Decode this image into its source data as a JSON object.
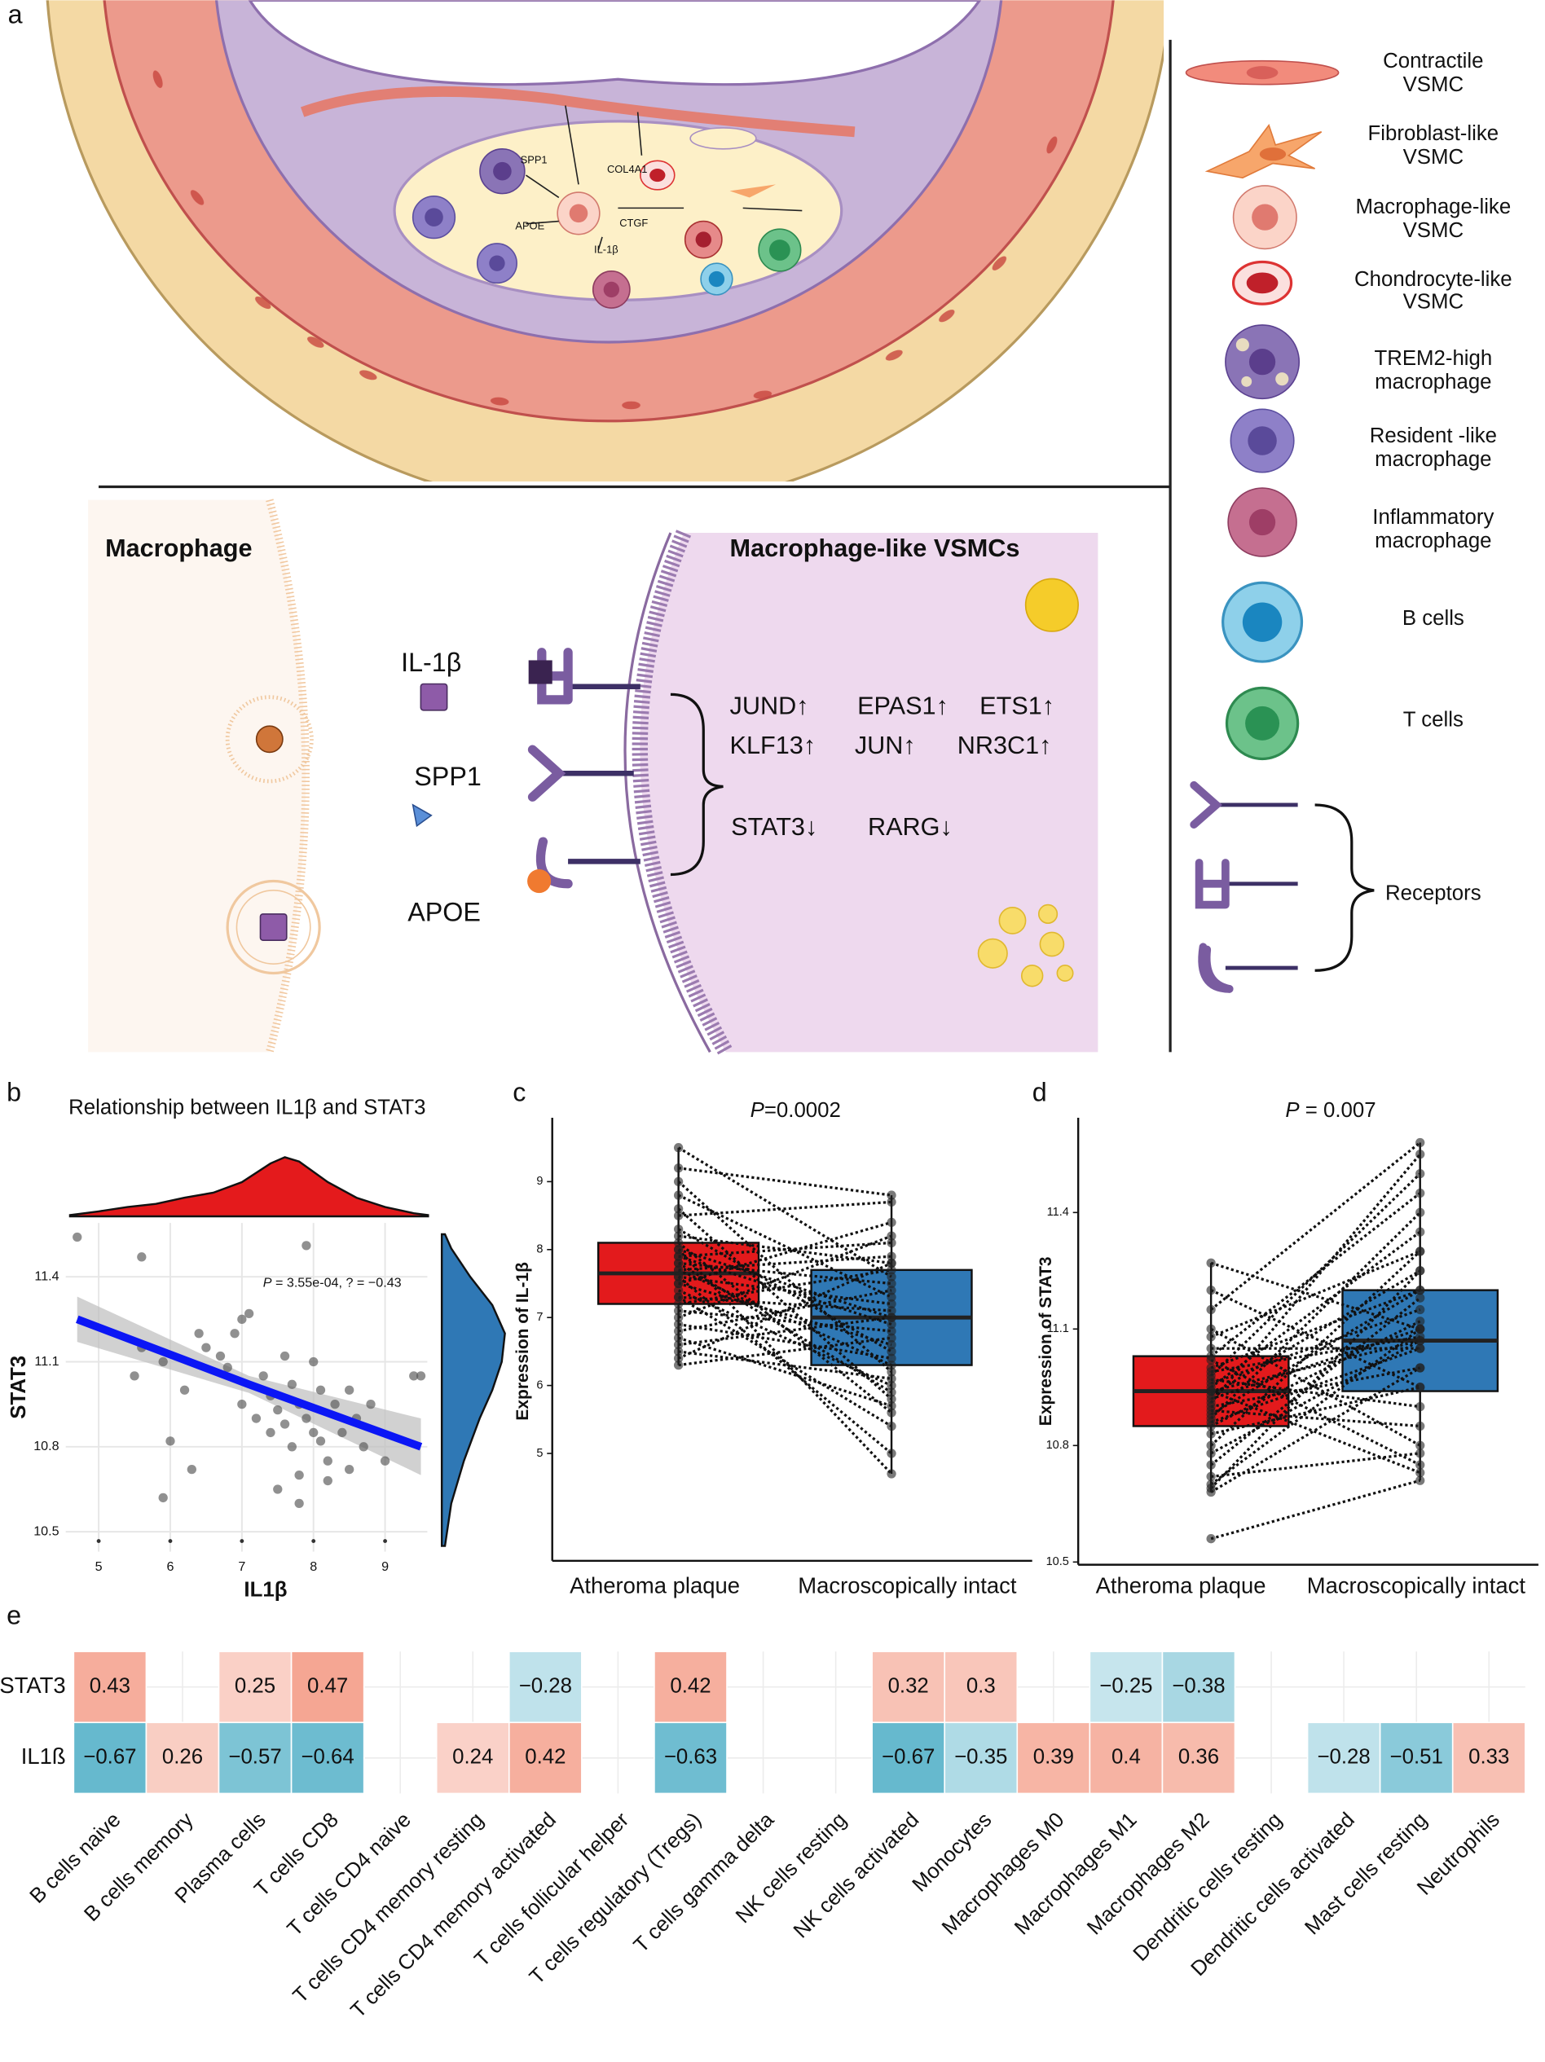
{
  "panel_labels": [
    "a",
    "b",
    "c",
    "d",
    "e"
  ],
  "panel_a": {
    "vessel_labels": [
      "SPP1",
      "COL4A1",
      "APOE",
      "IL-1β",
      "CTGF"
    ],
    "legend": [
      [
        "Contractile",
        "VSMC"
      ],
      [
        "Fibroblast-like",
        "VSMC"
      ],
      [
        "Macrophage-like",
        "VSMC"
      ],
      [
        "Chondrocyte-like",
        "VSMC"
      ],
      [
        "TREM2-high",
        "macrophage"
      ],
      [
        "Resident -like",
        "macrophage"
      ],
      [
        "Inflammatory",
        "macrophage"
      ],
      [
        "B cells"
      ],
      [
        "T cells"
      ],
      [
        "Receptors"
      ]
    ],
    "left_title": "Macrophage",
    "right_title": "Macrophage-like VSMCs",
    "ligands": [
      "IL-1β",
      "SPP1",
      "APOE"
    ],
    "genes_up": [
      "JUND↑",
      "EPAS1↑",
      "ETS1↑",
      "KLF13↑",
      "JUN↑",
      "NR3C1↑"
    ],
    "genes_down": [
      "STAT3↓",
      "RARG↓"
    ]
  },
  "chart_data": [
    {
      "type": "scatter",
      "title": "Relationship between IL1β and STAT3",
      "x_label": "IL1β",
      "y_label": "STAT3",
      "annotation_prefix": "P",
      "annotation": " = 3.55e-04, ? = −0.43",
      "x": [
        4.7,
        5.6,
        7.9,
        5.5,
        5.6,
        5.9,
        6.2,
        6.3,
        6.4,
        6.5,
        6.7,
        6.8,
        6.9,
        7.0,
        7.0,
        7.1,
        7.2,
        7.3,
        7.4,
        7.4,
        7.5,
        7.6,
        7.6,
        7.7,
        7.7,
        7.8,
        7.8,
        7.9,
        8.0,
        8.0,
        8.1,
        8.1,
        8.2,
        8.3,
        8.4,
        8.5,
        8.6,
        8.7,
        8.8,
        9.0,
        9.4,
        9.5,
        7.5,
        6.0,
        8.2,
        5.9,
        8.5,
        7.8
      ],
      "y": [
        11.54,
        11.47,
        11.51,
        11.05,
        11.15,
        11.1,
        11.0,
        10.72,
        11.2,
        11.15,
        11.12,
        11.08,
        11.2,
        11.25,
        10.95,
        11.27,
        10.9,
        11.05,
        10.98,
        10.85,
        10.93,
        11.12,
        10.88,
        11.02,
        10.8,
        10.95,
        10.7,
        10.9,
        10.85,
        11.1,
        10.82,
        11.0,
        10.75,
        10.95,
        10.85,
        11.0,
        10.9,
        10.8,
        10.95,
        10.75,
        11.05,
        11.05,
        10.65,
        10.82,
        10.68,
        10.62,
        10.72,
        10.6
      ],
      "point_color": "#555555",
      "xlim": [
        4.54,
        9.59
      ],
      "xticks": [
        5,
        6,
        7,
        8,
        9
      ],
      "ylim": [
        10.43,
        11.59
      ],
      "yticks": [
        10.5,
        10.8,
        11.1,
        11.4
      ],
      "grid": true,
      "trend": {
        "x": [
          4.7,
          7.1,
          9.5
        ],
        "y": [
          11.25,
          11.02,
          10.8
        ],
        "lower": [
          11.17,
          10.99,
          10.7
        ],
        "upper": [
          11.33,
          11.05,
          10.9
        ],
        "color": "#0b16f5",
        "band_color": "#bdbdbd"
      },
      "x_density": {
        "x": [
          4.6,
          5.0,
          5.4,
          5.8,
          6.2,
          6.6,
          7.0,
          7.4,
          7.6,
          7.8,
          8.2,
          8.6,
          9.0,
          9.4,
          9.6
        ],
        "values": [
          0.02,
          0.08,
          0.15,
          0.2,
          0.3,
          0.38,
          0.55,
          0.85,
          0.95,
          0.88,
          0.55,
          0.3,
          0.15,
          0.05,
          0.02
        ],
        "color": "#e41a1c"
      },
      "y_density": {
        "y": [
          10.45,
          10.6,
          10.75,
          10.9,
          11.0,
          11.1,
          11.2,
          11.3,
          11.4,
          11.5,
          11.55
        ],
        "values": [
          0.05,
          0.15,
          0.35,
          0.6,
          0.8,
          0.95,
          1.0,
          0.8,
          0.45,
          0.15,
          0.05
        ],
        "color": "#2f78b5"
      }
    },
    {
      "type": "paired-box",
      "title_prefix": "P",
      "title": "=0.0002",
      "y_label": "Expression of  IL-1β",
      "categories": [
        "Atheroma plaque",
        "Macroscopically intact"
      ],
      "colors": [
        "#e31a1c",
        "#2f78b5"
      ],
      "boxes": [
        {
          "low": 6.3,
          "q1": 7.2,
          "median": 7.65,
          "q3": 8.1,
          "high": 9.5
        },
        {
          "low": 4.7,
          "q1": 6.3,
          "median": 7.0,
          "q3": 7.7,
          "high": 8.8
        }
      ],
      "points": [
        [
          9.5,
          9.2,
          9.0,
          8.8,
          8.6,
          8.5,
          8.3,
          8.2,
          8.1,
          8.0,
          8.0,
          7.9,
          7.9,
          7.8,
          7.8,
          7.7,
          7.7,
          7.6,
          7.6,
          7.5,
          7.5,
          7.4,
          7.3,
          7.3,
          7.2,
          7.1,
          7.0,
          6.9,
          6.8,
          6.7,
          6.6,
          6.5,
          6.4,
          6.3
        ],
        [
          7.6,
          8.8,
          6.2,
          7.3,
          5.8,
          8.7,
          6.5,
          7.8,
          5.6,
          7.0,
          4.7,
          8.1,
          6.9,
          5.9,
          7.5,
          6.3,
          7.9,
          5.0,
          7.2,
          6.6,
          8.4,
          6.0,
          7.1,
          5.4,
          7.7,
          6.8,
          8.2,
          6.4,
          7.4,
          5.7,
          7.0,
          6.1,
          7.8,
          6.7
        ]
      ],
      "ylim": [
        3.42,
        9.94
      ],
      "yticks": [
        5,
        6,
        7,
        8,
        9
      ]
    },
    {
      "type": "paired-box",
      "title_prefix": "P",
      "title": " = 0.007",
      "y_label": "Expression of  STAT3",
      "categories": [
        "Atheroma plaque",
        "Macroscopically intact"
      ],
      "colors": [
        "#e31a1c",
        "#2f78b5"
      ],
      "boxes": [
        {
          "low": 10.68,
          "q1": 10.85,
          "median": 10.94,
          "q3": 11.03,
          "high": 11.27
        },
        {
          "low": 10.71,
          "q1": 10.94,
          "median": 11.07,
          "q3": 11.2,
          "high": 11.58
        }
      ],
      "points": [
        [
          11.27,
          11.2,
          11.15,
          11.1,
          11.08,
          11.05,
          11.03,
          11.02,
          11.0,
          10.99,
          10.98,
          10.97,
          10.96,
          10.95,
          10.94,
          10.94,
          10.93,
          10.92,
          10.91,
          10.9,
          10.89,
          10.88,
          10.87,
          10.86,
          10.85,
          10.83,
          10.8,
          10.78,
          10.75,
          10.72,
          10.7,
          10.69,
          10.68,
          10.56
        ],
        [
          11.1,
          10.95,
          11.58,
          10.8,
          11.3,
          11.05,
          11.45,
          10.75,
          11.2,
          11.08,
          11.5,
          10.9,
          11.15,
          11.35,
          11.07,
          10.73,
          11.25,
          11.1,
          11.55,
          11.0,
          10.85,
          11.2,
          11.4,
          11.05,
          11.12,
          10.95,
          11.3,
          11.07,
          11.18,
          10.78,
          11.1,
          11.25,
          11.0,
          10.71
        ]
      ],
      "ylim": [
        10.493,
        11.644
      ],
      "yticks": [
        10.5,
        10.8,
        11.1,
        11.4
      ]
    },
    {
      "type": "heatmap",
      "rows": [
        "STAT3",
        "IL1ß"
      ],
      "categories": [
        "B cells naive",
        "B cells memory",
        "Plasma cells",
        "T cells CD8",
        "T cells CD4 naive",
        "T cells CD4 memory resting",
        "T cells CD4 memory activated",
        "T cells follicular helper",
        "T cells regulatory (Tregs)",
        "T cells gamma delta",
        "NK cells resting",
        "NK cells activated",
        "Monocytes",
        "Macrophages M0",
        "Macrophages M1",
        "Macrophages M2",
        "Dendritic cells resting",
        "Dendritic cells activated",
        "Mast cells resting",
        "Neutrophils"
      ],
      "values": [
        [
          0.43,
          null,
          0.25,
          0.47,
          null,
          null,
          -0.28,
          null,
          0.42,
          null,
          null,
          0.32,
          0.3,
          null,
          -0.25,
          -0.38,
          null,
          null,
          null,
          null
        ],
        [
          -0.67,
          0.26,
          -0.57,
          -0.64,
          null,
          0.24,
          0.42,
          null,
          -0.63,
          null,
          null,
          -0.67,
          -0.35,
          0.39,
          0.4,
          0.36,
          null,
          -0.28,
          -0.51,
          0.33
        ]
      ],
      "value_labels": [
        [
          "0.43",
          null,
          "0.25",
          "0.47",
          null,
          null,
          "−0.28",
          null,
          "0.42",
          null,
          null,
          "0.32",
          "0.3",
          null,
          "−0.25",
          "−0.38",
          null,
          null,
          null,
          null
        ],
        [
          "−0.67",
          "0.26",
          "−0.57",
          "−0.64",
          null,
          "0.24",
          "0.42",
          null,
          "−0.63",
          null,
          null,
          "−0.67",
          "−0.35",
          "0.39",
          "0.4",
          "0.36",
          null,
          "−0.28",
          "−0.51",
          "0.33"
        ]
      ],
      "clim": [
        -0.7,
        0.7
      ],
      "color_low": "#5fb6cc",
      "color_mid": "#ffffff",
      "color_high": "#f07a5e"
    }
  ]
}
